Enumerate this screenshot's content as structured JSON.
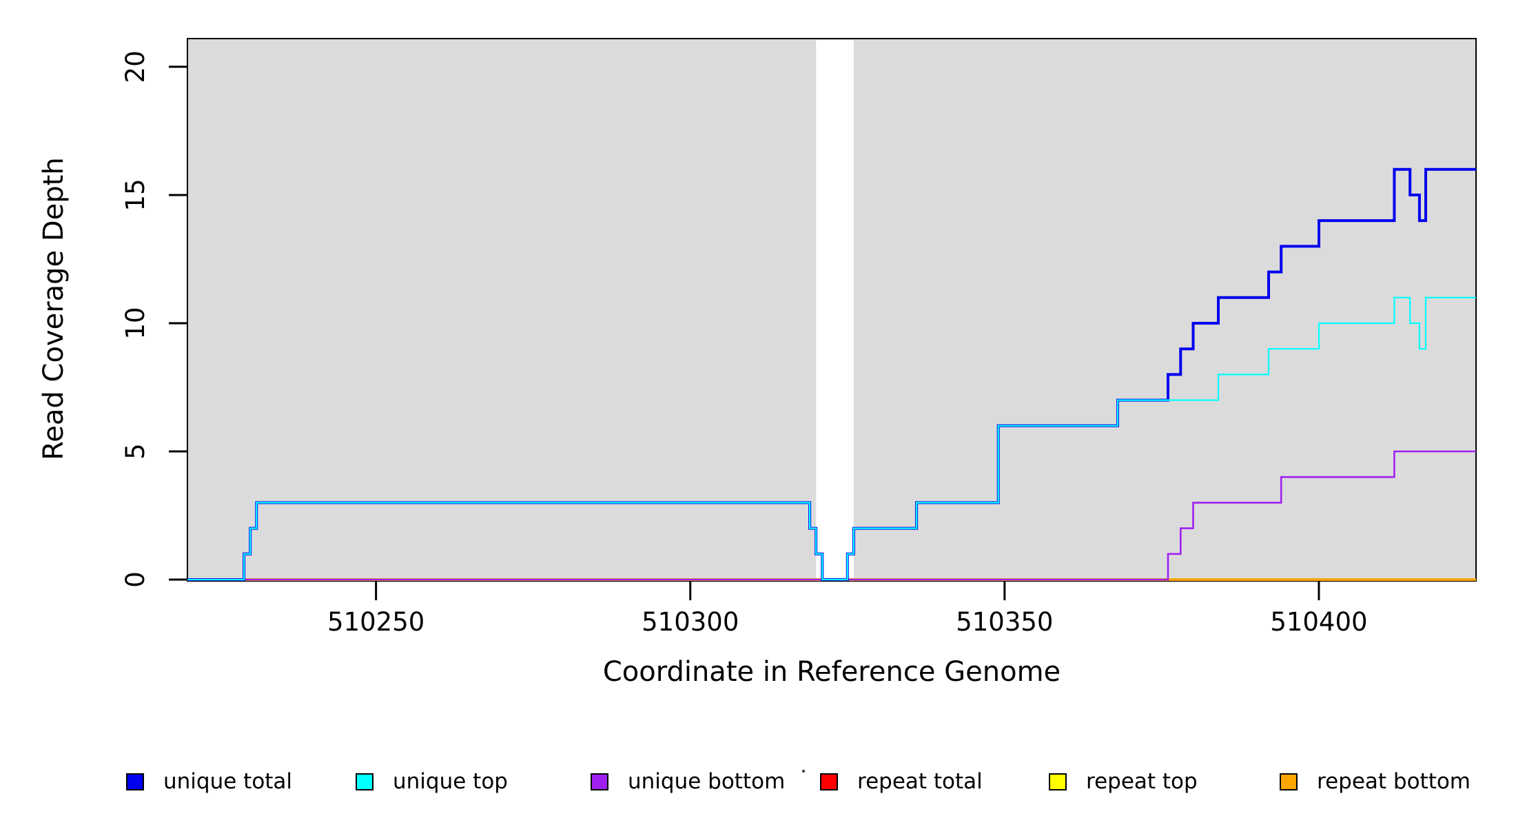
{
  "background": "#FFFFFF",
  "chart_data": {
    "type": "line",
    "step": true,
    "title": "",
    "xlabel": "Coordinate in Reference Genome",
    "ylabel": "Read Coverage Depth",
    "xlim": [
      510220,
      510425
    ],
    "ylim": [
      0,
      21.1
    ],
    "x_ticks": [
      510250,
      510300,
      510350,
      510400
    ],
    "y_ticks": [
      0,
      5,
      10,
      15,
      20
    ],
    "grid": false,
    "legend_position": "bottom",
    "plot_bg": "#DBDBDB",
    "gap_region": {
      "from": 510320,
      "to": 510326,
      "color": "#FFFFFF"
    },
    "series": [
      {
        "name": "repeat total",
        "color": "#FF0000",
        "width": 3.4,
        "steps": [
          [
            510220,
            0
          ],
          [
            510425,
            0
          ]
        ]
      },
      {
        "name": "repeat top",
        "color": "#FFFF00",
        "width": 3.4,
        "steps": [
          [
            510220,
            0
          ],
          [
            510425,
            0
          ]
        ]
      },
      {
        "name": "repeat bottom",
        "color": "#FFA500",
        "width": 3.4,
        "steps": [
          [
            510220,
            0
          ],
          [
            510425,
            0
          ]
        ]
      },
      {
        "name": "unique bottom",
        "color": "#A020F0",
        "width": 2.6,
        "steps": [
          [
            510220,
            0
          ],
          [
            510376,
            1
          ],
          [
            510378,
            2
          ],
          [
            510380,
            3
          ],
          [
            510394,
            4
          ],
          [
            510412,
            5
          ],
          [
            510425,
            5
          ]
        ]
      },
      {
        "name": "unique total",
        "color": "#0000EE",
        "width": 4,
        "steps": [
          [
            510220,
            0
          ],
          [
            510229,
            1
          ],
          [
            510230,
            2
          ],
          [
            510231,
            3
          ],
          [
            510319,
            2
          ],
          [
            510320,
            1
          ],
          [
            510321,
            0
          ],
          [
            510325,
            1
          ],
          [
            510326,
            2
          ],
          [
            510336,
            3
          ],
          [
            510349,
            6
          ],
          [
            510368,
            7
          ],
          [
            510376,
            8
          ],
          [
            510378,
            9
          ],
          [
            510380,
            10
          ],
          [
            510384,
            11
          ],
          [
            510392,
            12
          ],
          [
            510394,
            13
          ],
          [
            510400,
            14
          ],
          [
            510412,
            16
          ],
          [
            510414.5,
            15
          ],
          [
            510416,
            14
          ],
          [
            510417,
            16
          ],
          [
            510425,
            16
          ]
        ]
      },
      {
        "name": "unique top",
        "color": "#00FFFF",
        "width": 2.2,
        "steps": [
          [
            510220,
            0
          ],
          [
            510229,
            1
          ],
          [
            510230,
            2
          ],
          [
            510231,
            3
          ],
          [
            510319,
            2
          ],
          [
            510320,
            1
          ],
          [
            510321,
            0
          ],
          [
            510325,
            1
          ],
          [
            510326,
            2
          ],
          [
            510336,
            3
          ],
          [
            510349,
            6
          ],
          [
            510368,
            7
          ],
          [
            510384,
            8
          ],
          [
            510392,
            9
          ],
          [
            510400,
            10
          ],
          [
            510412,
            11
          ],
          [
            510414.5,
            10
          ],
          [
            510416,
            9
          ],
          [
            510417,
            11
          ],
          [
            510425,
            11
          ]
        ]
      }
    ],
    "legend": [
      {
        "label": "unique total",
        "color": "#0000EE"
      },
      {
        "label": "unique top",
        "color": "#00FFFF"
      },
      {
        "label": "unique bottom",
        "color": "#A020F0"
      },
      {
        "label": "repeat total",
        "color": "#FF0000"
      },
      {
        "label": "repeat top",
        "color": "#FFFF00"
      },
      {
        "label": "repeat bottom",
        "color": "#FFA500"
      }
    ]
  }
}
